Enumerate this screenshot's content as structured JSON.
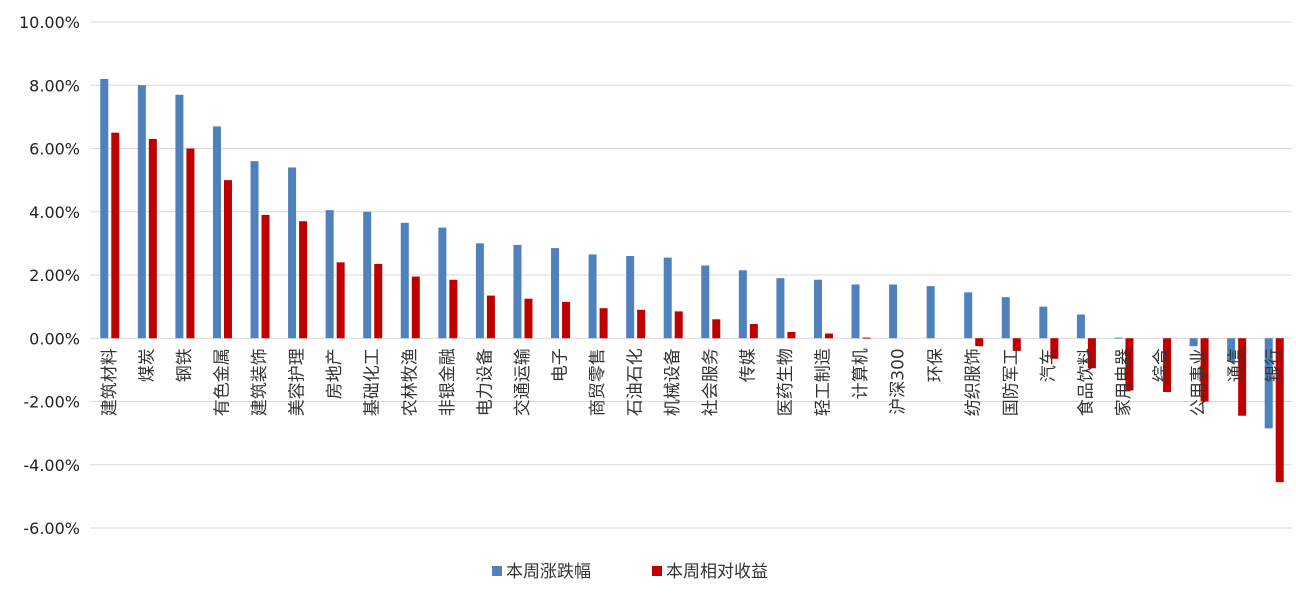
{
  "chart_data": {
    "type": "bar",
    "title": "",
    "xlabel": "",
    "ylabel": "",
    "ylim": [
      -6,
      10
    ],
    "yticks": [
      "10.00%",
      "8.00%",
      "6.00%",
      "4.00%",
      "2.00%",
      "0.00%",
      "-2.00%",
      "-4.00%",
      "-6.00%"
    ],
    "ytick_values": [
      10,
      8,
      6,
      4,
      2,
      0,
      -2,
      -4,
      -6
    ],
    "grid": true,
    "legend_position": "bottom",
    "categories": [
      "建筑材料",
      "煤炭",
      "钢铁",
      "有色金属",
      "建筑装饰",
      "美容护理",
      "房地产",
      "基础化工",
      "农林牧渔",
      "非银金融",
      "电力设备",
      "交通运输",
      "电子",
      "商贸零售",
      "石油石化",
      "机械设备",
      "社会服务",
      "传媒",
      "医药生物",
      "轻工制造",
      "计算机",
      "沪深300",
      "环保",
      "纺织服饰",
      "国防军工",
      "汽车",
      "食品饮料",
      "家用电器",
      "综合",
      "公用事业",
      "通信",
      "银行"
    ],
    "series": [
      {
        "name": "本周涨跌幅",
        "color": "#4f81bd",
        "values": [
          8.2,
          8.0,
          7.7,
          6.7,
          5.6,
          5.4,
          4.05,
          4.0,
          3.65,
          3.5,
          3.0,
          2.95,
          2.85,
          2.65,
          2.6,
          2.55,
          2.3,
          2.15,
          1.9,
          1.85,
          1.7,
          1.7,
          1.65,
          1.45,
          1.3,
          1.0,
          0.75,
          0.02,
          0.0,
          -0.25,
          -0.75,
          -2.85
        ]
      },
      {
        "name": "本周相对收益",
        "color": "#c00000",
        "values": [
          6.5,
          6.3,
          6.0,
          5.0,
          3.9,
          3.7,
          2.4,
          2.35,
          1.95,
          1.85,
          1.35,
          1.25,
          1.15,
          0.95,
          0.9,
          0.85,
          0.6,
          0.45,
          0.2,
          0.15,
          0.02,
          0.0,
          0.0,
          -0.25,
          -0.4,
          -0.65,
          -0.95,
          -1.65,
          -1.7,
          -2.0,
          -2.45,
          -4.55
        ]
      }
    ]
  }
}
